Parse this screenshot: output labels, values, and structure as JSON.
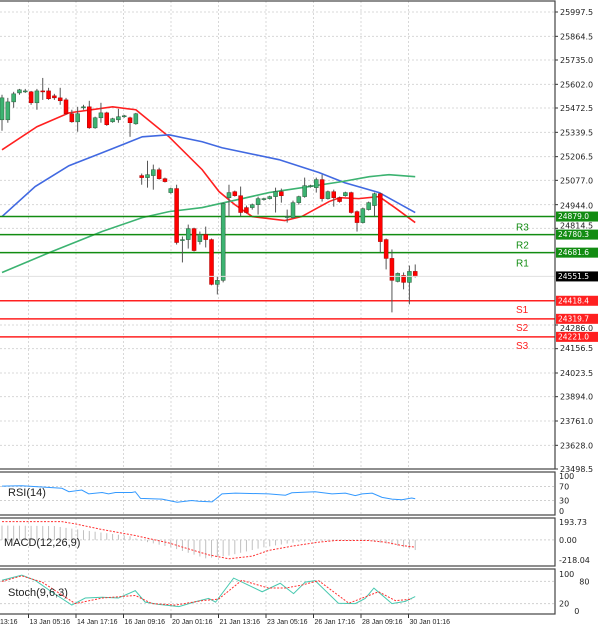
{
  "chart_data": [
    {
      "type": "candlestick",
      "panel": "price",
      "ylim": [
        23498.5,
        25997.5
      ],
      "grid": true,
      "y_ticks": [
        "25997.5",
        "25864.5",
        "25735.0",
        "25602.0",
        "25472.5",
        "25339.5",
        "25206.5",
        "25077.0",
        "24944.0",
        "24814.5",
        "24286.0",
        "24156.5",
        "24023.5",
        "23894.0",
        "23761.0",
        "23628.0",
        "23498.5"
      ],
      "x_ticks": [
        "13:16",
        "13 Jan 05:16",
        "14 Jan 17:16",
        "16 Jan 09:16",
        "20 Jan 01:16",
        "21 Jan 13:16",
        "23 Jan 05:16",
        "26 Jan 17:16",
        "28 Jan 09:16",
        "30 Jan 01:16"
      ],
      "current_price": "24551.5",
      "colors": {
        "up": "#3cb371",
        "down": "#ff0000",
        "wick": "#555555",
        "current_bg": "#000000"
      },
      "ohlc": [
        [
          25408,
          25545,
          25348,
          25528
        ],
        [
          25408,
          25528,
          25392,
          25506
        ],
        [
          25506,
          25561,
          25474,
          25550
        ],
        [
          25555,
          25577,
          25545,
          25572
        ],
        [
          25561,
          25577,
          25555,
          25566
        ],
        [
          25561,
          25566,
          25490,
          25501
        ],
        [
          25501,
          25577,
          25463,
          25566
        ],
        [
          25566,
          25637,
          25517,
          25563
        ],
        [
          25566,
          25583,
          25517,
          25523
        ],
        [
          25539,
          25550,
          25517,
          25528
        ],
        [
          25528,
          25583,
          25490,
          25512
        ],
        [
          25517,
          25528,
          25435,
          25441
        ],
        [
          25441,
          25463,
          25392,
          25397
        ],
        [
          25397,
          25479,
          25343,
          25441
        ],
        [
          25474,
          25490,
          25463,
          25479
        ],
        [
          25479,
          25512,
          25359,
          25364
        ],
        [
          25364,
          25425,
          25359,
          25419
        ],
        [
          25419,
          25501,
          25392,
          25446
        ],
        [
          25446,
          25452,
          25375,
          25381
        ],
        [
          25397,
          25419,
          25392,
          25414
        ],
        [
          25408,
          25468,
          25392,
          25425
        ],
        [
          25425,
          25435,
          25419,
          25430
        ],
        [
          25419,
          25425,
          25315,
          25392
        ],
        [
          25386,
          25446,
          25381,
          25441
        ],
        [
          25103,
          25114,
          25053,
          25092
        ],
        [
          25092,
          25184,
          25037,
          25108
        ],
        [
          25103,
          25163,
          25026,
          25135
        ],
        [
          25135,
          25146,
          25081,
          25086
        ],
        [
          25086,
          25092,
          25065,
          25070
        ],
        [
          25010,
          25037,
          25004,
          25032
        ],
        [
          25032,
          25053,
          24726,
          24737
        ],
        [
          24748,
          24770,
          24628,
          24753
        ],
        [
          24753,
          24835,
          24704,
          24813
        ],
        [
          24813,
          24818,
          24688,
          24693
        ],
        [
          24742,
          24797,
          24726,
          24781
        ],
        [
          24781,
          24824,
          24710,
          24753
        ],
        [
          24753,
          24759,
          24503,
          24508
        ],
        [
          24508,
          24552,
          24453,
          24530
        ],
        [
          24530,
          24955,
          24519,
          24950
        ],
        [
          24982,
          25053,
          24879,
          25010
        ],
        [
          25015,
          25021,
          24988,
          24993
        ],
        [
          24993,
          25043,
          24879,
          24901
        ],
        [
          24928,
          24939,
          24895,
          24901
        ],
        [
          24928,
          24950,
          24917,
          24944
        ],
        [
          24944,
          24988,
          24890,
          24977
        ],
        [
          24972,
          24982,
          24966,
          24977
        ],
        [
          24977,
          24993,
          24972,
          24988
        ],
        [
          24988,
          25037,
          24901,
          25015
        ],
        [
          25015,
          25032,
          24955,
          24993
        ],
        [
          24879,
          24917,
          24846,
          24879
        ],
        [
          24873,
          24966,
          24868,
          24955
        ],
        [
          24955,
          24993,
          24944,
          24988
        ],
        [
          24988,
          25092,
          24982,
          25048
        ],
        [
          25043,
          25053,
          25037,
          25048
        ],
        [
          25037,
          25092,
          25010,
          25081
        ],
        [
          25081,
          25108,
          24961,
          24977
        ],
        [
          24977,
          25021,
          24972,
          25015
        ],
        [
          25015,
          25026,
          24933,
          24982
        ],
        [
          24982,
          24988,
          24955,
          24961
        ],
        [
          24993,
          25015,
          24988,
          25010
        ],
        [
          25010,
          25015,
          24895,
          24901
        ],
        [
          24906,
          24912,
          24797,
          24846
        ],
        [
          24846,
          24928,
          24841,
          24922
        ],
        [
          24917,
          24961,
          24912,
          24955
        ],
        [
          24939,
          25010,
          24879,
          25004
        ],
        [
          25004,
          25010,
          24682,
          24742
        ],
        [
          24753,
          24759,
          24590,
          24650
        ],
        [
          24650,
          24699,
          24355,
          24530
        ],
        [
          24524,
          24573,
          24519,
          24568
        ],
        [
          24557,
          24573,
          24481,
          24519
        ],
        [
          24519,
          24611,
          24399,
          24579
        ],
        [
          24579,
          24617,
          24546,
          24551.5
        ]
      ],
      "moving_averages": [
        {
          "color": "#ff2020",
          "points": [
            [
              1,
              25244
            ],
            [
              7,
              25370
            ],
            [
              12.5,
              25446
            ],
            [
              20,
              25479
            ],
            [
              24,
              25463
            ],
            [
              29.7,
              25315
            ],
            [
              35.4,
              25135
            ],
            [
              38.3,
              25015
            ],
            [
              41,
              24944
            ],
            [
              44,
              24879
            ],
            [
              49.6,
              24857
            ],
            [
              52.5,
              24879
            ],
            [
              57.2,
              24961
            ],
            [
              59,
              24982
            ],
            [
              62.3,
              24977
            ],
            [
              65.8,
              24988
            ],
            [
              68.5,
              24928
            ],
            [
              72,
              24846
            ]
          ]
        },
        {
          "color": "#4169e1",
          "points": [
            [
              1,
              24879
            ],
            [
              6.7,
              25043
            ],
            [
              12.5,
              25157
            ],
            [
              18.2,
              25228
            ],
            [
              25.1,
              25315
            ],
            [
              29.7,
              25326
            ],
            [
              35.4,
              25288
            ],
            [
              38.8,
              25255
            ],
            [
              48.6,
              25190
            ],
            [
              55.5,
              25119
            ],
            [
              59.9,
              25064
            ],
            [
              65.8,
              25010
            ],
            [
              72,
              24901
            ]
          ]
        },
        {
          "color": "#3cb371",
          "points": [
            [
              1,
              24573
            ],
            [
              9.6,
              24688
            ],
            [
              18.2,
              24797
            ],
            [
              25.1,
              24873
            ],
            [
              29.7,
              24906
            ],
            [
              35.4,
              24928
            ],
            [
              46.9,
              25010
            ],
            [
              52.5,
              25037
            ],
            [
              59.4,
              25070
            ],
            [
              64.1,
              25097
            ],
            [
              67.5,
              25108
            ],
            [
              72,
              25097
            ]
          ]
        }
      ],
      "pivot_levels": [
        {
          "name": "R3",
          "value": "24879.0",
          "color": "#128c12"
        },
        {
          "name": "R2",
          "value": "24780.3",
          "color": "#128c12"
        },
        {
          "name": "R1",
          "value": "24681.6",
          "color": "#128c12"
        },
        {
          "name": "S1",
          "value": "24418.4",
          "color": "#ff2020"
        },
        {
          "name": "S2",
          "value": "24319.7",
          "color": "#ff2020"
        },
        {
          "name": "S3",
          "value": "24221.0",
          "color": "#ff2020"
        }
      ]
    },
    {
      "type": "line",
      "panel": "rsi",
      "title": "RSI(14)",
      "ylim": [
        0,
        100
      ],
      "y_ticks": [
        "100",
        "70",
        "30",
        "0"
      ],
      "color": "#3399ff",
      "points": [
        [
          1,
          71
        ],
        [
          4.4,
          72
        ],
        [
          11.3,
          65
        ],
        [
          12.5,
          55
        ],
        [
          14.7,
          60
        ],
        [
          15.9,
          49
        ],
        [
          18.2,
          53
        ],
        [
          19.3,
          49
        ],
        [
          20.5,
          53
        ],
        [
          23.3,
          53
        ],
        [
          23.9,
          55
        ],
        [
          24.8,
          36
        ],
        [
          28.5,
          34
        ],
        [
          31.1,
          25
        ],
        [
          33.6,
          30
        ],
        [
          34.8,
          28
        ],
        [
          37.1,
          26
        ],
        [
          38.8,
          49
        ],
        [
          41.1,
          51
        ],
        [
          46.8,
          49
        ],
        [
          49.7,
          45
        ],
        [
          50.8,
          52
        ],
        [
          54.8,
          55
        ],
        [
          57.7,
          49
        ],
        [
          60,
          51
        ],
        [
          61.7,
          44
        ],
        [
          62.9,
          49
        ],
        [
          64.6,
          51
        ],
        [
          66.3,
          39
        ],
        [
          68,
          34
        ],
        [
          69.7,
          32
        ],
        [
          71.4,
          37
        ],
        [
          72,
          35
        ]
      ]
    },
    {
      "type": "bar+line",
      "panel": "macd",
      "title": "MACD(12,26,9)",
      "ylim": [
        -218.04,
        193.73
      ],
      "y_ticks": [
        "193.73",
        "0.00",
        "-218.04"
      ],
      "histogram_color": "#c0c0c0",
      "signal_color": "#ff3030",
      "histogram": [
        [
          1,
          155
        ],
        [
          10,
          150
        ],
        [
          12,
          130
        ],
        [
          18,
          80
        ],
        [
          23,
          40
        ],
        [
          25,
          -10
        ],
        [
          30,
          -80
        ],
        [
          36,
          -200
        ],
        [
          40,
          -170
        ],
        [
          46,
          -80
        ],
        [
          52,
          -20
        ],
        [
          60,
          -5
        ],
        [
          64,
          -10
        ],
        [
          68,
          -50
        ],
        [
          72,
          -110
        ]
      ],
      "signal": [
        [
          1,
          198
        ],
        [
          11.3,
          198
        ],
        [
          13.6,
          173
        ],
        [
          18.2,
          112
        ],
        [
          23.9,
          47
        ],
        [
          29.6,
          -32
        ],
        [
          33,
          -97
        ],
        [
          36.5,
          -162
        ],
        [
          40,
          -205
        ],
        [
          44,
          -176
        ],
        [
          46.8,
          -115
        ],
        [
          50.8,
          -68
        ],
        [
          55.4,
          -25
        ],
        [
          58.3,
          -7
        ],
        [
          64,
          -7
        ],
        [
          66.9,
          -25
        ],
        [
          69.7,
          -61
        ],
        [
          72,
          -79
        ]
      ]
    },
    {
      "type": "line",
      "panel": "stochastic",
      "title": "Stoch(9,6,3)",
      "ylim": [
        0,
        100
      ],
      "y_ticks": [
        "100",
        "80",
        "20",
        "0"
      ],
      "main_color": "#48c9b0",
      "signal_color": "#ff3030",
      "main": [
        [
          1,
          83
        ],
        [
          4.4,
          97
        ],
        [
          6.7,
          83
        ],
        [
          9.6,
          51
        ],
        [
          13,
          16
        ],
        [
          15.3,
          35
        ],
        [
          18.2,
          37
        ],
        [
          21,
          35
        ],
        [
          23.9,
          55
        ],
        [
          25.6,
          24
        ],
        [
          27.9,
          18
        ],
        [
          31.4,
          12
        ],
        [
          34.2,
          25
        ],
        [
          36.5,
          34
        ],
        [
          37.7,
          24
        ],
        [
          40.8,
          89
        ],
        [
          45.7,
          52
        ],
        [
          48.8,
          75
        ],
        [
          51.1,
          47
        ],
        [
          53.1,
          78
        ],
        [
          54.8,
          82
        ],
        [
          58.8,
          21
        ],
        [
          61.7,
          20
        ],
        [
          63.4,
          34
        ],
        [
          64.9,
          62
        ],
        [
          68,
          20
        ],
        [
          70.3,
          26
        ],
        [
          72,
          39
        ]
      ],
      "signal": [
        [
          1,
          80
        ],
        [
          4.4,
          95
        ],
        [
          7.9,
          78
        ],
        [
          13.6,
          20
        ],
        [
          18.2,
          35
        ],
        [
          23.9,
          42
        ],
        [
          26.8,
          20
        ],
        [
          30.8,
          16
        ],
        [
          35.4,
          28
        ],
        [
          38.2,
          32
        ],
        [
          42.2,
          83
        ],
        [
          46.8,
          62
        ],
        [
          49.7,
          62
        ],
        [
          52.5,
          70
        ],
        [
          55.4,
          82
        ],
        [
          60.6,
          21
        ],
        [
          65.7,
          52
        ],
        [
          68.6,
          28
        ],
        [
          71.4,
          32
        ]
      ]
    }
  ]
}
